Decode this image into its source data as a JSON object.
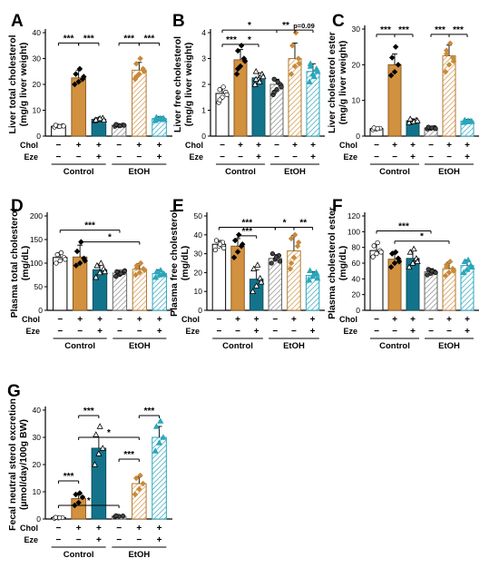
{
  "colors": {
    "control": "#ffffff",
    "chol": "#d2913f",
    "chol_eze": "#13738a",
    "etoh_hatch": "#888888",
    "etoh_chol_hatch": "#d2913f",
    "etoh_chol_eze_hatch": "#2aa6bb"
  },
  "row_labels": {
    "chol": "Chol",
    "eze": "Eze"
  },
  "conditions": {
    "chol": [
      "−",
      "+",
      "+",
      "−",
      "+",
      "+"
    ],
    "eze": [
      "−",
      "−",
      "+",
      "−",
      "−",
      "+"
    ]
  },
  "groups": [
    "Control",
    "EtOH"
  ],
  "chart_data": [
    {
      "id": "A",
      "panel_label": "A",
      "type": "bar",
      "ylabel": "Liver total cholesterol (mg/g liver weight)",
      "ylim": [
        0,
        40
      ],
      "yticks": [
        0,
        10,
        20,
        30,
        40
      ],
      "values": [
        3.8,
        22.5,
        6.5,
        4.2,
        25.5,
        6.8
      ],
      "errors": [
        0.4,
        3.0,
        0.6,
        0.4,
        3.0,
        0.8
      ],
      "points": [
        [
          3.5,
          3.8,
          4.0,
          4.2,
          3.7,
          3.9
        ],
        [
          20,
          21,
          22,
          24,
          26,
          23
        ],
        [
          6,
          6.5,
          7,
          6.3,
          6.8,
          6.2
        ],
        [
          3.8,
          4.1,
          4.3,
          4.5,
          4.0,
          4.2
        ],
        [
          22,
          24,
          26,
          28,
          30,
          25,
          23
        ],
        [
          6,
          6.5,
          7,
          7.3,
          6.8,
          6.4,
          7.1
        ]
      ],
      "annotations": [
        {
          "from": 0,
          "to": 1,
          "label": "***",
          "y": 36
        },
        {
          "from": 1,
          "to": 2,
          "label": "***",
          "y": 36
        },
        {
          "from": 3,
          "to": 4,
          "label": "***",
          "y": 36
        },
        {
          "from": 4,
          "to": 5,
          "label": "***",
          "y": 36
        }
      ]
    },
    {
      "id": "B",
      "panel_label": "B",
      "type": "bar",
      "ylabel": "Liver free cholesterol (mg/g liver weight)",
      "ylim": [
        0,
        4
      ],
      "yticks": [
        0,
        1,
        2,
        3,
        4
      ],
      "values": [
        1.65,
        2.95,
        2.25,
        2.0,
        3.0,
        2.5
      ],
      "errors": [
        0.2,
        0.4,
        0.2,
        0.2,
        0.6,
        0.3
      ],
      "points": [
        [
          1.3,
          1.5,
          1.7,
          1.8,
          1.9,
          1.6,
          1.4
        ],
        [
          2.4,
          2.7,
          3.0,
          3.3,
          3.5,
          2.9,
          2.6
        ],
        [
          2.0,
          2.2,
          2.4,
          2.5,
          2.1,
          2.3,
          2.2
        ],
        [
          1.6,
          1.8,
          2.0,
          2.2,
          2.1,
          1.9,
          1.7
        ],
        [
          2.4,
          2.7,
          3.0,
          3.5,
          4.0,
          2.8
        ],
        [
          2.1,
          2.4,
          2.6,
          2.8,
          2.3,
          2.5,
          2.7
        ]
      ],
      "annotations": [
        {
          "from": 0,
          "to": 1,
          "label": "***",
          "y": 3.55
        },
        {
          "from": 1,
          "to": 2,
          "label": "*",
          "y": 3.55
        },
        {
          "from": 0,
          "to": 3,
          "label": "*",
          "y": 4.1
        },
        {
          "from": 3,
          "to": 4,
          "label": "**",
          "y": 4.1
        },
        {
          "from": 4,
          "to": 5,
          "label": "p=0.09",
          "y": 4.1
        }
      ]
    },
    {
      "id": "C",
      "panel_label": "C",
      "type": "bar",
      "ylabel": "Liver cholesterol ester",
      "ylim": [
        0,
        30
      ],
      "yticks": [
        0,
        10,
        20,
        30
      ],
      "values": [
        2.1,
        20.0,
        4.3,
        2.3,
        22.5,
        4.2
      ],
      "errors": [
        0.3,
        3.0,
        0.5,
        0.3,
        3.0,
        0.5
      ],
      "points": [
        [
          1.8,
          2.0,
          2.2,
          2.3,
          2.1
        ],
        [
          17,
          18,
          20,
          22,
          25
        ],
        [
          3.8,
          4.2,
          4.5,
          4.8,
          4.0,
          4.3
        ],
        [
          2.0,
          2.2,
          2.4,
          2.5,
          2.3,
          2.1
        ],
        [
          18,
          20,
          22,
          24,
          26,
          21,
          23
        ],
        [
          3.8,
          4.0,
          4.2,
          4.5,
          4.3,
          4.1
        ]
      ],
      "annotations": [
        {
          "from": 0,
          "to": 1,
          "label": "***",
          "y": 28.5
        },
        {
          "from": 1,
          "to": 2,
          "label": "***",
          "y": 28.5
        },
        {
          "from": 3,
          "to": 4,
          "label": "***",
          "y": 28.5
        },
        {
          "from": 4,
          "to": 5,
          "label": "***",
          "y": 28.5
        }
      ]
    },
    {
      "id": "D",
      "panel_label": "D",
      "type": "bar",
      "ylabel": "Plasma total cholesterol (mg/dL)",
      "ylim": [
        0,
        200
      ],
      "yticks": [
        0,
        50,
        100,
        150,
        200
      ],
      "values": [
        112,
        113,
        86,
        79,
        87,
        78
      ],
      "errors": [
        10,
        25,
        12,
        6,
        12,
        8
      ],
      "points": [
        [
          100,
          105,
          112,
          118,
          122,
          108
        ],
        [
          95,
          100,
          110,
          125,
          145,
          105
        ],
        [
          70,
          80,
          88,
          95,
          100,
          82
        ],
        [
          72,
          76,
          80,
          82,
          78,
          84
        ],
        [
          75,
          80,
          88,
          95,
          100,
          85,
          90
        ],
        [
          70,
          75,
          78,
          82,
          85,
          76
        ]
      ],
      "annotations": [
        {
          "from": 0,
          "to": 3,
          "label": "***",
          "y": 170
        },
        {
          "from": 1,
          "to": 4,
          "label": "*",
          "y": 145
        }
      ]
    },
    {
      "id": "E",
      "panel_label": "E",
      "type": "bar",
      "ylabel": "Plasma free cholesterol",
      "ylim": [
        0,
        50
      ],
      "yticks": [
        0,
        10,
        20,
        30,
        40,
        50
      ],
      "values": [
        35,
        34,
        16.5,
        27.5,
        31.5,
        18.5
      ],
      "errors": [
        2,
        4,
        5,
        2,
        8,
        2
      ],
      "points": [
        [
          32,
          34,
          36,
          37,
          35,
          33
        ],
        [
          28,
          31,
          34,
          37,
          40,
          35
        ],
        [
          10,
          13,
          17,
          22,
          24,
          15
        ],
        [
          25,
          27,
          29,
          30,
          28,
          26
        ],
        [
          22,
          28,
          34,
          38,
          40,
          36,
          25
        ],
        [
          16,
          18,
          20,
          21,
          19,
          17
        ]
      ],
      "annotations": [
        {
          "from": 0,
          "to": 3,
          "label": "***",
          "y": 44
        },
        {
          "from": 1,
          "to": 2,
          "label": "***",
          "y": 39.5
        },
        {
          "from": 3,
          "to": 4,
          "label": "*",
          "y": 44
        },
        {
          "from": 4,
          "to": 5,
          "label": "**",
          "y": 44
        }
      ]
    },
    {
      "id": "F",
      "panel_label": "F",
      "type": "bar",
      "ylabel": "Plasma cholesterol ester",
      "ylim": [
        0,
        120
      ],
      "yticks": [
        0,
        20,
        40,
        60,
        80,
        100,
        120
      ],
      "values": [
        76,
        65,
        66,
        49,
        53,
        57
      ],
      "errors": [
        8,
        10,
        10,
        4,
        8,
        7
      ],
      "points": [
        [
          68,
          72,
          76,
          82,
          86,
          74
        ],
        [
          55,
          60,
          66,
          72,
          74,
          62
        ],
        [
          55,
          60,
          66,
          74,
          78,
          62
        ],
        [
          45,
          47,
          49,
          52,
          50,
          48
        ],
        [
          44,
          48,
          53,
          58,
          62,
          50,
          55
        ],
        [
          48,
          52,
          57,
          62,
          64,
          55
        ]
      ],
      "annotations": [
        {
          "from": 0,
          "to": 3,
          "label": "***",
          "y": 101
        },
        {
          "from": 1,
          "to": 4,
          "label": "*",
          "y": 88
        }
      ]
    },
    {
      "id": "G",
      "panel_label": "G",
      "type": "bar",
      "ylabel": "Fecal neutral sterol excretion",
      "ylim": [
        0,
        40
      ],
      "yticks": [
        0,
        10,
        20,
        30,
        40
      ],
      "values": [
        0.5,
        7.5,
        26,
        1.0,
        13,
        30
      ],
      "errors": [
        0.2,
        1.5,
        4,
        0.3,
        2.5,
        4
      ],
      "points": [
        [
          0.3,
          0.4,
          0.5,
          0.6,
          0.5
        ],
        [
          5,
          6,
          8,
          9,
          9.5
        ],
        [
          20,
          24,
          26,
          31,
          34
        ],
        [
          0.8,
          1.0,
          1.1,
          1.2
        ],
        [
          9,
          11,
          13,
          15,
          16
        ],
        [
          25,
          28,
          30,
          34,
          36
        ]
      ],
      "annotations": [
        {
          "from": 0,
          "to": 1,
          "label": "***",
          "y": 14
        },
        {
          "from": 1,
          "to": 2,
          "label": "***",
          "y": 38
        },
        {
          "from": 3,
          "to": 4,
          "label": "***",
          "y": 22
        },
        {
          "from": 4,
          "to": 5,
          "label": "***",
          "y": 38
        },
        {
          "from": 1,
          "to": 4,
          "label": "*",
          "y": 30,
          "label_at": "mid-high"
        },
        {
          "from": 0,
          "to": 3,
          "label": "*",
          "y": 5,
          "label_at": "mid-high"
        }
      ]
    }
  ]
}
